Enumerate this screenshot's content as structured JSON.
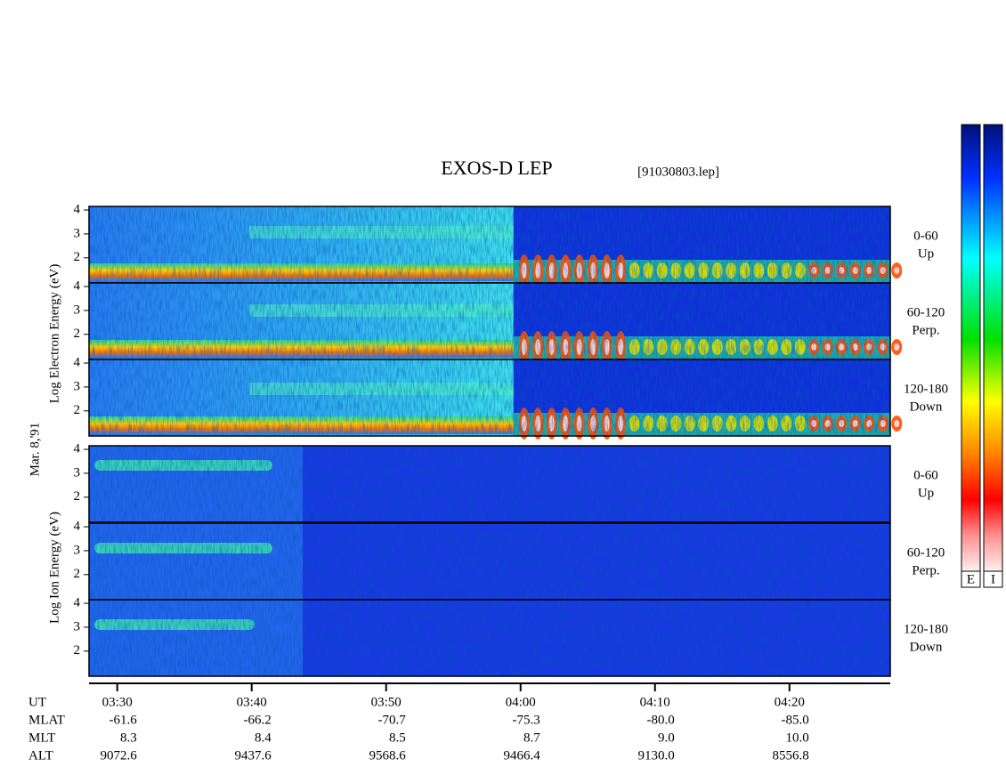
{
  "header": {
    "title": "EXOS-D LEP",
    "file": "[91030803.lep]",
    "date": "Mar. 8,'91"
  },
  "chart_data": {
    "type": "spectrogram",
    "xlim": [
      207.9,
      267.5
    ],
    "xticks": [
      {
        "value": 210,
        "label": "03:30"
      },
      {
        "value": 220,
        "label": "03:40"
      },
      {
        "value": 230,
        "label": "03:50"
      },
      {
        "value": 240,
        "label": "04:00"
      },
      {
        "value": 250,
        "label": "04:10"
      },
      {
        "value": 260,
        "label": "04:20"
      }
    ],
    "ylim": [
      0.95,
      4.15
    ],
    "yticks": [
      2,
      3,
      4
    ],
    "groups": [
      {
        "ylabel": "Log Electron Energy (eV)",
        "panels": [
          {
            "angle": "0-60",
            "direction": "Up"
          },
          {
            "angle": "60-120",
            "direction": "Perp."
          },
          {
            "angle": "120-180",
            "direction": "Down"
          }
        ]
      },
      {
        "ylabel": "Log Ion Energy (eV)",
        "panels": [
          {
            "angle": "0-60",
            "direction": "Up"
          },
          {
            "angle": "60-120",
            "direction": "Perp."
          },
          {
            "angle": "120-180",
            "direction": "Down"
          }
        ]
      }
    ],
    "colorbars": [
      "E",
      "I"
    ]
  },
  "orbit": {
    "time_label": "UT",
    "rows": [
      {
        "label": "MLAT",
        "values": [
          "-61.6",
          "-66.2",
          "-70.7",
          "-75.3",
          "-80.0",
          "-85.0"
        ]
      },
      {
        "label": "MLT",
        "values": [
          "8.3",
          "8.4",
          "8.5",
          "8.7",
          "9.0",
          "10.0"
        ]
      },
      {
        "label": "ALT",
        "values": [
          "9072.6",
          "9437.6",
          "9568.6",
          "9466.4",
          "9130.0",
          "8556.8"
        ]
      }
    ]
  }
}
